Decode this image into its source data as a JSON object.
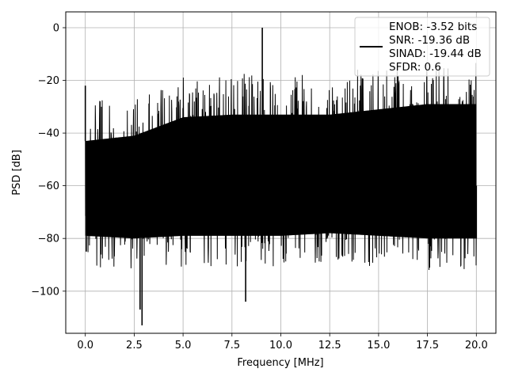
{
  "chart_data": {
    "type": "line",
    "xlabel": "Frequency [MHz]",
    "ylabel": "PSD [dB]",
    "xlim": [
      -1,
      21
    ],
    "ylim": [
      -116,
      6
    ],
    "xticks": [
      0.0,
      2.5,
      5.0,
      7.5,
      10.0,
      12.5,
      15.0,
      17.5,
      20.0
    ],
    "xtick_labels": [
      "0.0",
      "2.5",
      "5.0",
      "7.5",
      "10.0",
      "12.5",
      "15.0",
      "17.5",
      "20.0"
    ],
    "yticks": [
      0,
      -20,
      -40,
      -60,
      -80,
      -100
    ],
    "ytick_labels": [
      "0",
      "−20",
      "−40",
      "−60",
      "−80",
      "−100"
    ],
    "grid": true,
    "legend": {
      "placement": "top-right",
      "entries": [
        "ENOB: -3.52 bits",
        "SNR: -19.36 dB",
        "SINAD: -19.44 dB",
        "SFDR: 0.6"
      ]
    },
    "series": [
      {
        "color": "#000000",
        "x": [
          0.0,
          0.05,
          2.8,
          2.9,
          8.2,
          9.05,
          12.0,
          16.0,
          20.0
        ],
        "y": [
          -22,
          -85,
          -107,
          -113,
          -104,
          0,
          -70,
          -65,
          -60
        ]
      }
    ],
    "band": {
      "x_range": [
        0.0,
        20.0
      ],
      "upper": {
        "x": [
          0.0,
          2.5,
          5.0,
          7.5,
          10.0,
          12.5,
          15.0,
          17.5,
          20.0
        ],
        "y": [
          -43,
          -41,
          -34,
          -33,
          -33,
          -33,
          -31,
          -29,
          -29
        ]
      },
      "lower": {
        "x": [
          0.0,
          2.5,
          5.0,
          7.5,
          10.0,
          12.5,
          15.0,
          17.5,
          20.0
        ],
        "y": [
          -79,
          -80,
          -79,
          -79,
          -79,
          -78,
          -79,
          -80,
          -80
        ]
      }
    }
  }
}
